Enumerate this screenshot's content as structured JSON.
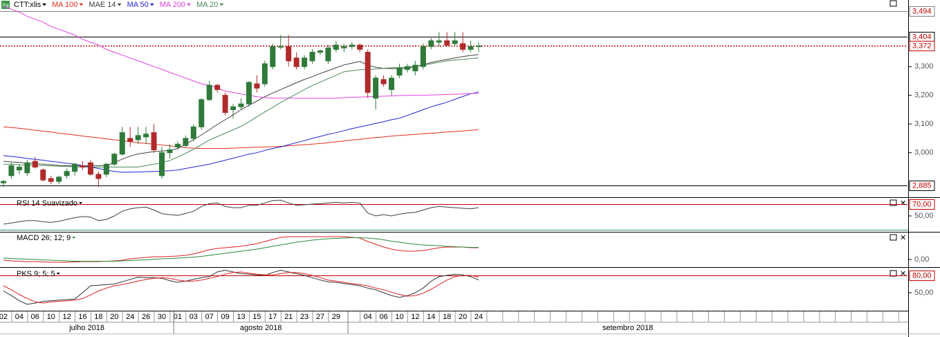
{
  "chart_data": [
    {
      "type": "candlestick",
      "title": "CTT:xlis",
      "categories": [
        "02",
        null,
        "04",
        null,
        "06",
        null,
        "10",
        null,
        "12",
        null,
        "16",
        null,
        "18",
        null,
        "20",
        null,
        "24",
        null,
        "26",
        null,
        "30",
        null,
        "01",
        null,
        "03",
        null,
        "07",
        null,
        "09",
        null,
        "13",
        null,
        "15",
        null,
        "17",
        null,
        "21",
        null,
        "23",
        null,
        "27",
        null,
        "29",
        null,
        null,
        null,
        "04",
        null,
        "06",
        null,
        "10",
        null,
        "12",
        null,
        "14",
        null,
        "18",
        null,
        "20",
        null,
        "24"
      ],
      "months": [
        "julho 2018",
        "agosto 2018",
        "setembro 2018"
      ],
      "open": [
        2.895,
        2.92,
        2.94,
        2.93,
        2.97,
        2.94,
        2.91,
        2.9,
        2.92,
        2.935,
        2.955,
        2.965,
        2.925,
        2.925,
        2.96,
        2.995,
        3.05,
        3.045,
        3.055,
        3.07,
        2.92,
        3.0,
        3.02,
        3.025,
        3.05,
        3.09,
        3.185,
        3.235,
        3.2,
        3.15,
        3.16,
        3.17,
        3.24,
        3.24,
        3.3,
        3.37,
        3.37,
        3.33,
        3.3,
        3.32,
        3.35,
        3.32,
        3.36,
        3.365,
        3.37,
        3.375,
        3.35,
        3.19,
        3.255,
        3.22,
        3.27,
        3.29,
        3.285,
        3.3,
        3.37,
        3.385,
        3.39,
        3.38,
        3.38,
        3.36,
        3.37
      ],
      "high": [
        2.905,
        2.965,
        2.96,
        2.975,
        2.985,
        2.945,
        2.92,
        2.92,
        2.945,
        2.965,
        2.97,
        2.975,
        2.935,
        2.965,
        3.0,
        3.09,
        3.09,
        3.09,
        3.09,
        3.1,
        3.02,
        3.03,
        3.04,
        3.06,
        3.1,
        3.19,
        3.25,
        3.24,
        3.21,
        3.17,
        3.19,
        3.25,
        3.27,
        3.32,
        3.38,
        3.41,
        3.41,
        3.35,
        3.34,
        3.36,
        3.36,
        3.375,
        3.39,
        3.38,
        3.385,
        3.38,
        3.36,
        3.27,
        3.27,
        3.27,
        3.31,
        3.31,
        3.32,
        3.38,
        3.4,
        3.42,
        3.42,
        3.42,
        3.42,
        3.39,
        3.385
      ],
      "low": [
        2.88,
        2.91,
        2.925,
        2.92,
        2.945,
        2.9,
        2.89,
        2.89,
        2.91,
        2.92,
        2.94,
        2.92,
        2.88,
        2.915,
        2.955,
        2.99,
        3.02,
        3.03,
        3.03,
        3.0,
        2.91,
        2.98,
        3.01,
        3.02,
        3.04,
        3.08,
        3.18,
        3.21,
        3.13,
        3.12,
        3.15,
        3.16,
        3.21,
        3.23,
        3.29,
        3.36,
        3.3,
        3.29,
        3.29,
        3.31,
        3.34,
        3.31,
        3.35,
        3.35,
        3.36,
        3.35,
        3.19,
        3.15,
        3.23,
        3.2,
        3.26,
        3.28,
        3.27,
        3.29,
        3.36,
        3.37,
        3.37,
        3.37,
        3.35,
        3.35,
        3.35
      ],
      "close": [
        2.9,
        2.955,
        2.95,
        2.965,
        2.95,
        2.905,
        2.9,
        2.915,
        2.935,
        2.96,
        2.95,
        2.925,
        2.91,
        2.96,
        2.995,
        3.07,
        3.04,
        3.06,
        3.065,
        3.01,
        3.0,
        3.01,
        3.03,
        3.05,
        3.09,
        3.185,
        3.235,
        3.22,
        3.14,
        3.16,
        3.17,
        3.245,
        3.225,
        3.31,
        3.37,
        3.37,
        3.32,
        3.3,
        3.33,
        3.35,
        3.355,
        3.365,
        3.375,
        3.37,
        3.375,
        3.36,
        3.21,
        3.26,
        3.24,
        3.26,
        3.295,
        3.3,
        3.305,
        3.37,
        3.39,
        3.39,
        3.375,
        3.39,
        3.36,
        3.37,
        3.372
      ],
      "up_color": "#2f7a3a",
      "down_color": "#b02a2a",
      "series": [
        {
          "name": "MA 100",
          "color": "#e0301e",
          "values": [
            3.09,
            3.088,
            3.085,
            3.082,
            3.078,
            3.075,
            3.072,
            3.068,
            3.065,
            3.062,
            3.058,
            3.055,
            3.052,
            3.048,
            3.045,
            3.042,
            3.038,
            3.035,
            3.032,
            3.03,
            3.027,
            3.024,
            3.02,
            3.018,
            3.016,
            3.015,
            3.015,
            3.015,
            3.015,
            3.016,
            3.017,
            3.018,
            3.019,
            3.02,
            3.021,
            3.022,
            3.024,
            3.026,
            3.028,
            3.03,
            3.032,
            3.035,
            3.038,
            3.041,
            3.044,
            3.047,
            3.05,
            3.053,
            3.055,
            3.058,
            3.06,
            3.062,
            3.064,
            3.066,
            3.068,
            3.07,
            3.072,
            3.074,
            3.076,
            3.078,
            3.08
          ]
        },
        {
          "name": "MAE 14",
          "color": "#404040",
          "values": [
            2.97,
            2.968,
            2.966,
            2.964,
            2.962,
            2.96,
            2.958,
            2.956,
            2.955,
            2.954,
            2.954,
            2.955,
            2.955,
            2.956,
            2.965,
            2.978,
            2.988,
            2.996,
            3.0,
            3.004,
            3.006,
            3.008,
            3.015,
            3.03,
            3.045,
            3.062,
            3.08,
            3.098,
            3.115,
            3.132,
            3.15,
            3.165,
            3.18,
            3.195,
            3.208,
            3.22,
            3.232,
            3.244,
            3.255,
            3.265,
            3.276,
            3.286,
            3.296,
            3.306,
            3.312,
            3.318,
            3.305,
            3.298,
            3.294,
            3.293,
            3.293,
            3.294,
            3.3,
            3.307,
            3.314,
            3.32,
            3.325,
            3.33,
            3.335,
            3.339,
            3.342
          ]
        },
        {
          "name": "MA 50",
          "color": "#2424d4",
          "values": [
            2.99,
            2.987,
            2.984,
            2.98,
            2.977,
            2.974,
            2.97,
            2.967,
            2.963,
            2.96,
            2.955,
            2.95,
            2.945,
            2.94,
            2.935,
            2.932,
            2.932,
            2.933,
            2.934,
            2.935,
            2.936,
            2.937,
            2.94,
            2.945,
            2.95,
            2.955,
            2.96,
            2.967,
            2.974,
            2.981,
            2.988,
            2.995,
            3.0,
            3.008,
            3.015,
            3.02,
            3.028,
            3.035,
            3.042,
            3.05,
            3.057,
            3.064,
            3.07,
            3.077,
            3.084,
            3.09,
            3.096,
            3.102,
            3.108,
            3.115,
            3.12,
            3.13,
            3.14,
            3.15,
            3.16,
            3.168,
            3.176,
            3.186,
            3.196,
            3.205,
            3.212
          ]
        },
        {
          "name": "MA 200",
          "color": "#e040e0",
          "values": [
            3.51,
            3.5,
            3.49,
            3.475,
            3.465,
            3.455,
            3.44,
            3.43,
            3.42,
            3.41,
            3.395,
            3.385,
            3.375,
            3.36,
            3.35,
            3.34,
            3.33,
            3.32,
            3.31,
            3.3,
            3.29,
            3.28,
            3.27,
            3.26,
            3.25,
            3.24,
            3.235,
            3.225,
            3.215,
            3.21,
            3.205,
            3.2,
            3.195,
            3.192,
            3.19,
            3.19,
            3.19,
            3.19,
            3.19,
            3.19,
            3.19,
            3.19,
            3.19,
            3.192,
            3.193,
            3.194,
            3.195,
            3.196,
            3.197,
            3.198,
            3.199,
            3.2,
            3.2,
            3.2,
            3.201,
            3.202,
            3.203,
            3.204,
            3.205,
            3.206,
            3.207
          ]
        },
        {
          "name": "MA 20",
          "color": "#4a8a5a",
          "values": [
            2.96,
            2.96,
            2.958,
            2.957,
            2.956,
            2.955,
            2.954,
            2.953,
            2.952,
            2.951,
            2.95,
            2.95,
            2.95,
            2.95,
            2.95,
            2.95,
            2.95,
            2.95,
            2.955,
            2.96,
            2.965,
            2.973,
            2.985,
            2.998,
            3.012,
            3.028,
            3.044,
            3.056,
            3.068,
            3.08,
            3.092,
            3.108,
            3.125,
            3.142,
            3.158,
            3.175,
            3.19,
            3.205,
            3.22,
            3.234,
            3.246,
            3.258,
            3.27,
            3.282,
            3.286,
            3.289,
            3.29,
            3.292,
            3.294,
            3.296,
            3.297,
            3.299,
            3.3,
            3.305,
            3.31,
            3.315,
            3.32,
            3.323,
            3.325,
            3.328,
            3.33
          ]
        }
      ],
      "ylim": [
        2.845,
        3.532
      ],
      "yticks": [
        {
          "value": 3.3,
          "label": "3,300"
        },
        {
          "value": 3.2,
          "label": "3,200"
        },
        {
          "value": 3.1,
          "label": "3,100"
        },
        {
          "value": 3.0,
          "label": "3,000"
        }
      ],
      "levels": [
        {
          "value": 3.494,
          "label": "3,494",
          "color": "#808080",
          "style": "solid"
        },
        {
          "value": 3.404,
          "label": "3,404",
          "color": "#000000",
          "style": "solid"
        },
        {
          "value": 3.372,
          "label": "3,372",
          "color": "#c00000",
          "style": "dotted"
        },
        {
          "value": 2.885,
          "label": "2,885",
          "color": "#000000",
          "style": "solid"
        }
      ]
    },
    {
      "type": "line",
      "title": "RSI 14 Suavizado",
      "series": [
        {
          "color": "#404040",
          "values": [
            36,
            38,
            40,
            42,
            42,
            40,
            39,
            41,
            44,
            47,
            49,
            48,
            42,
            44,
            50,
            58,
            62,
            64,
            65,
            60,
            54,
            52,
            51,
            54,
            58,
            66,
            71,
            72,
            66,
            64,
            64,
            68,
            68,
            72,
            76,
            77,
            72,
            68,
            69,
            70,
            71,
            72,
            73,
            72,
            73,
            72,
            55,
            50,
            52,
            50,
            53,
            55,
            56,
            60,
            64,
            66,
            65,
            64,
            63,
            62,
            64
          ]
        }
      ],
      "ylim": [
        26.5,
        80.6
      ],
      "yticks": [
        {
          "value": 50,
          "label": "50,00"
        }
      ],
      "levels": [
        {
          "value": 70,
          "label": "70,00",
          "color": "#c00000",
          "style": "solid"
        }
      ]
    },
    {
      "type": "line",
      "title": "MACD 26; 12; 9",
      "series": [
        {
          "color": "#e02020",
          "values": [
            -0.002,
            -0.004,
            -0.005,
            -0.006,
            -0.006,
            -0.007,
            -0.008,
            -0.008,
            -0.008,
            -0.007,
            -0.006,
            -0.006,
            -0.006,
            -0.005,
            -0.004,
            -0.002,
            0.002,
            0.004,
            0.006,
            0.008,
            0.008,
            0.009,
            0.01,
            0.012,
            0.016,
            0.022,
            0.028,
            0.032,
            0.034,
            0.036,
            0.038,
            0.042,
            0.046,
            0.052,
            0.058,
            0.064,
            0.066,
            0.066,
            0.066,
            0.066,
            0.066,
            0.066,
            0.066,
            0.066,
            0.064,
            0.062,
            0.052,
            0.044,
            0.036,
            0.03,
            0.026,
            0.024,
            0.024,
            0.026,
            0.03,
            0.034,
            0.036,
            0.036,
            0.036,
            0.034,
            0.034
          ]
        },
        {
          "color": "#2a8a3a",
          "values": [
            0.004,
            0.003,
            0.002,
            0.001,
            0,
            -0.001,
            -0.002,
            -0.003,
            -0.004,
            -0.005,
            -0.005,
            -0.005,
            -0.005,
            -0.005,
            -0.005,
            -0.004,
            -0.003,
            -0.002,
            -0.001,
            0.001,
            0.002,
            0.003,
            0.004,
            0.005,
            0.007,
            0.009,
            0.012,
            0.015,
            0.018,
            0.021,
            0.024,
            0.027,
            0.03,
            0.034,
            0.038,
            0.042,
            0.046,
            0.05,
            0.053,
            0.056,
            0.058,
            0.06,
            0.061,
            0.062,
            0.063,
            0.063,
            0.062,
            0.06,
            0.057,
            0.053,
            0.05,
            0.047,
            0.044,
            0.042,
            0.041,
            0.04,
            0.038,
            0.037,
            0.036,
            0.035,
            0.035
          ]
        }
      ],
      "ylim": [
        -0.018,
        0.078
      ],
      "yticks": [
        {
          "value": 0,
          "label": "0,00"
        }
      ]
    },
    {
      "type": "line",
      "title": "PKS 9; 5; 5",
      "series": [
        {
          "color": "#303030",
          "values": [
            53,
            45,
            36,
            30,
            32,
            35,
            36,
            37,
            38,
            39,
            50,
            62,
            63,
            64,
            65,
            69,
            73,
            77,
            76,
            76,
            75,
            71,
            68,
            70,
            73,
            76,
            78,
            86,
            89,
            86,
            83,
            82,
            81,
            80,
            85,
            89,
            86,
            83,
            80,
            76,
            72,
            69,
            68,
            66,
            64,
            62,
            58,
            55,
            50,
            45,
            42,
            45,
            50,
            58,
            70,
            78,
            80,
            82,
            81,
            78,
            72
          ]
        },
        {
          "color": "#e02020",
          "values": [
            62,
            55,
            47,
            40,
            34,
            32,
            34,
            35,
            36,
            37,
            40,
            46,
            53,
            58,
            62,
            64,
            67,
            70,
            73,
            75,
            76,
            75,
            72,
            70,
            70,
            72,
            75,
            78,
            82,
            85,
            86,
            84,
            82,
            81,
            81,
            83,
            85,
            85,
            83,
            80,
            76,
            72,
            70,
            68,
            66,
            64,
            62,
            58,
            55,
            51,
            47,
            44,
            45,
            49,
            56,
            64,
            72,
            78,
            80,
            80,
            77
          ]
        }
      ],
      "ylim": [
        23.6,
        92
      ],
      "yticks": [
        {
          "value": 50,
          "label": "50,00"
        }
      ],
      "levels": [
        {
          "value": 80,
          "label": "80,00",
          "color": "#c00000",
          "style": "solid"
        }
      ]
    }
  ]
}
